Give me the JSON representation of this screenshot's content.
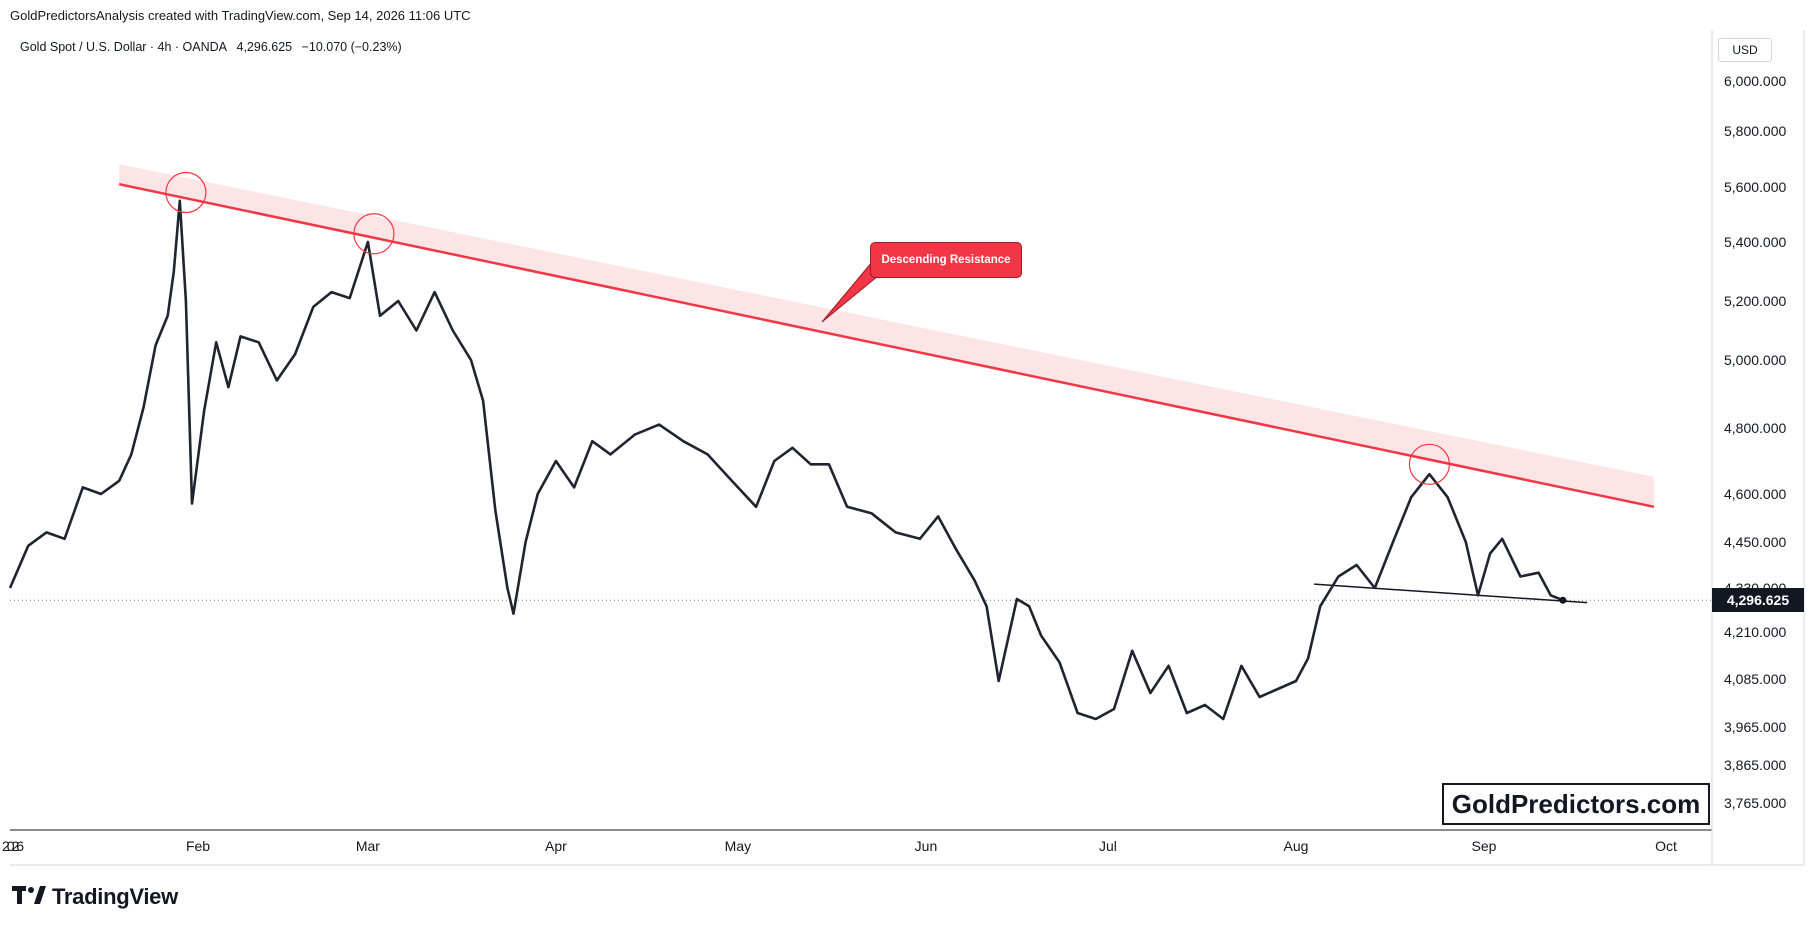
{
  "header": {
    "text": "GoldPredictorsAnalysis created with TradingView.com, Sep 14, 2026 11:06 UTC"
  },
  "legend": {
    "symbol": "Gold Spot / U.S. Dollar · 4h · OANDA",
    "last": "4,296.625",
    "change": "−10.070 (−0.23%)"
  },
  "currency": "USD",
  "watermark": "GoldPredictors.com",
  "footer": {
    "brand": "TradingView",
    "logo_icon": "tradingview-logo-icon"
  },
  "annotation": {
    "label": "Descending Resistance"
  },
  "colors": {
    "price": "#1f2430",
    "resistance": "#f23645",
    "band": "#fde2e4",
    "circle": "#f23645"
  },
  "chart_data": {
    "type": "line",
    "x_label_first": "2026",
    "x_tick_labels": [
      "2026",
      "Feb",
      "Mar",
      "Apr",
      "May",
      "Jun",
      "Jul",
      "Aug",
      "Sep",
      "Oct"
    ],
    "y_tick_labels": [
      "6,000.000",
      "5,800.000",
      "5,600.000",
      "5,400.000",
      "5,200.000",
      "5,000.000",
      "4,800.000",
      "4,600.000",
      "4,450.000",
      "4,330.000",
      "4,210.000",
      "4,085.000",
      "3,965.000",
      "3,865.000",
      "3,765.000"
    ],
    "current_price_label": "4,296.625",
    "series": [
      {
        "values": [
          [
            "2026-01-01",
            4330
          ],
          [
            "2026-01-04",
            4440
          ],
          [
            "2026-01-07",
            4480
          ],
          [
            "2026-01-10",
            4460
          ],
          [
            "2026-01-13",
            4620
          ],
          [
            "2026-01-16",
            4600
          ],
          [
            "2026-01-19",
            4640
          ],
          [
            "2026-01-21",
            4720
          ],
          [
            "2026-01-23",
            4860
          ],
          [
            "2026-01-25",
            5050
          ],
          [
            "2026-01-27",
            5150
          ],
          [
            "2026-01-28",
            5300
          ],
          [
            "2026-01-29",
            5550
          ],
          [
            "2026-01-30",
            5200
          ],
          [
            "2026-01-31",
            4570
          ],
          [
            "2026-02-02",
            4850
          ],
          [
            "2026-02-04",
            5060
          ],
          [
            "2026-02-06",
            4920
          ],
          [
            "2026-02-08",
            5080
          ],
          [
            "2026-02-11",
            5060
          ],
          [
            "2026-02-14",
            4940
          ],
          [
            "2026-02-17",
            5020
          ],
          [
            "2026-02-20",
            5180
          ],
          [
            "2026-02-23",
            5230
          ],
          [
            "2026-02-26",
            5210
          ],
          [
            "2026-03-01",
            5400
          ],
          [
            "2026-03-03",
            5150
          ],
          [
            "2026-03-06",
            5200
          ],
          [
            "2026-03-09",
            5100
          ],
          [
            "2026-03-12",
            5230
          ],
          [
            "2026-03-15",
            5100
          ],
          [
            "2026-03-18",
            5000
          ],
          [
            "2026-03-20",
            4880
          ],
          [
            "2026-03-22",
            4550
          ],
          [
            "2026-03-24",
            4330
          ],
          [
            "2026-03-25",
            4260
          ],
          [
            "2026-03-27",
            4450
          ],
          [
            "2026-03-29",
            4600
          ],
          [
            "2026-04-01",
            4700
          ],
          [
            "2026-04-04",
            4620
          ],
          [
            "2026-04-07",
            4760
          ],
          [
            "2026-04-10",
            4720
          ],
          [
            "2026-04-14",
            4780
          ],
          [
            "2026-04-18",
            4810
          ],
          [
            "2026-04-22",
            4760
          ],
          [
            "2026-04-26",
            4720
          ],
          [
            "2026-04-30",
            4640
          ],
          [
            "2026-05-04",
            4560
          ],
          [
            "2026-05-07",
            4700
          ],
          [
            "2026-05-10",
            4740
          ],
          [
            "2026-05-13",
            4690
          ],
          [
            "2026-05-16",
            4690
          ],
          [
            "2026-05-19",
            4560
          ],
          [
            "2026-05-23",
            4540
          ],
          [
            "2026-05-27",
            4480
          ],
          [
            "2026-05-31",
            4460
          ],
          [
            "2026-06-03",
            4530
          ],
          [
            "2026-06-06",
            4430
          ],
          [
            "2026-06-09",
            4350
          ],
          [
            "2026-06-11",
            4280
          ],
          [
            "2026-06-13",
            4080
          ],
          [
            "2026-06-16",
            4300
          ],
          [
            "2026-06-18",
            4280
          ],
          [
            "2026-06-20",
            4200
          ],
          [
            "2026-06-23",
            4130
          ],
          [
            "2026-06-26",
            4000
          ],
          [
            "2026-06-29",
            3985
          ],
          [
            "2026-07-02",
            4010
          ],
          [
            "2026-07-05",
            4160
          ],
          [
            "2026-07-08",
            4050
          ],
          [
            "2026-07-11",
            4120
          ],
          [
            "2026-07-14",
            4000
          ],
          [
            "2026-07-17",
            4020
          ],
          [
            "2026-07-20",
            3985
          ],
          [
            "2026-07-23",
            4120
          ],
          [
            "2026-07-26",
            4040
          ],
          [
            "2026-07-29",
            4060
          ],
          [
            "2026-08-01",
            4080
          ],
          [
            "2026-08-03",
            4140
          ],
          [
            "2026-08-05",
            4280
          ],
          [
            "2026-08-08",
            4360
          ],
          [
            "2026-08-11",
            4390
          ],
          [
            "2026-08-14",
            4330
          ],
          [
            "2026-08-17",
            4450
          ],
          [
            "2026-08-20",
            4590
          ],
          [
            "2026-08-23",
            4660
          ],
          [
            "2026-08-26",
            4590
          ],
          [
            "2026-08-29",
            4450
          ],
          [
            "2026-08-31",
            4310
          ],
          [
            "2026-09-02",
            4420
          ],
          [
            "2026-09-04",
            4460
          ],
          [
            "2026-09-07",
            4360
          ],
          [
            "2026-09-10",
            4370
          ],
          [
            "2026-09-12",
            4310
          ],
          [
            "2026-09-14",
            4296.625
          ]
        ]
      }
    ],
    "resistance_line": {
      "start": [
        "2026-01-19",
        5610
      ],
      "end": [
        "2026-09-29",
        4560
      ]
    },
    "support_line": {
      "start": [
        "2026-08-04",
        4340
      ],
      "end": [
        "2026-09-18",
        4290
      ]
    },
    "touch_points": [
      [
        "2026-01-30",
        5580
      ],
      [
        "2026-03-02",
        5430
      ],
      [
        "2026-08-23",
        4690
      ]
    ],
    "grid": false
  }
}
